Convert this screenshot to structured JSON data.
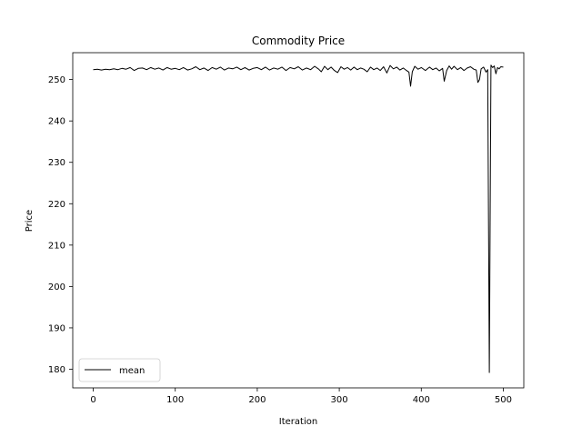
{
  "chart_data": {
    "type": "line",
    "title": "Commodity Price",
    "xlabel": "Iteration",
    "ylabel": "Price",
    "xlim": [
      -25,
      525
    ],
    "ylim": [
      175.5,
      256.5
    ],
    "xticks": [
      0,
      100,
      200,
      300,
      400,
      500
    ],
    "yticks": [
      180,
      190,
      200,
      210,
      220,
      230,
      240,
      250
    ],
    "grid": false,
    "legend": "lower-left",
    "series": [
      {
        "name": "mean",
        "color": "#000000",
        "points": [
          [
            0,
            252.4
          ],
          [
            5,
            252.5
          ],
          [
            10,
            252.3
          ],
          [
            15,
            252.5
          ],
          [
            20,
            252.4
          ],
          [
            25,
            252.6
          ],
          [
            30,
            252.4
          ],
          [
            35,
            252.7
          ],
          [
            40,
            252.5
          ],
          [
            45,
            252.9
          ],
          [
            50,
            252.2
          ],
          [
            55,
            252.7
          ],
          [
            60,
            252.8
          ],
          [
            65,
            252.4
          ],
          [
            70,
            252.9
          ],
          [
            75,
            252.5
          ],
          [
            80,
            252.8
          ],
          [
            85,
            252.3
          ],
          [
            90,
            252.9
          ],
          [
            95,
            252.5
          ],
          [
            100,
            252.7
          ],
          [
            105,
            252.4
          ],
          [
            110,
            252.9
          ],
          [
            115,
            252.3
          ],
          [
            120,
            252.6
          ],
          [
            125,
            253.1
          ],
          [
            130,
            252.4
          ],
          [
            135,
            252.8
          ],
          [
            140,
            252.2
          ],
          [
            145,
            252.9
          ],
          [
            150,
            252.5
          ],
          [
            155,
            253.0
          ],
          [
            160,
            252.3
          ],
          [
            165,
            252.8
          ],
          [
            170,
            252.6
          ],
          [
            175,
            253.0
          ],
          [
            180,
            252.4
          ],
          [
            185,
            252.9
          ],
          [
            190,
            252.3
          ],
          [
            195,
            252.7
          ],
          [
            200,
            252.9
          ],
          [
            205,
            252.4
          ],
          [
            210,
            253.0
          ],
          [
            215,
            252.3
          ],
          [
            220,
            252.8
          ],
          [
            225,
            252.5
          ],
          [
            230,
            253.0
          ],
          [
            235,
            252.2
          ],
          [
            240,
            252.9
          ],
          [
            245,
            252.6
          ],
          [
            250,
            253.1
          ],
          [
            255,
            252.3
          ],
          [
            260,
            252.8
          ],
          [
            265,
            252.4
          ],
          [
            270,
            253.2
          ],
          [
            275,
            252.5
          ],
          [
            278,
            251.9
          ],
          [
            282,
            253.2
          ],
          [
            286,
            252.4
          ],
          [
            290,
            253.0
          ],
          [
            294,
            252.2
          ],
          [
            298,
            251.7
          ],
          [
            302,
            253.1
          ],
          [
            306,
            252.5
          ],
          [
            310,
            252.9
          ],
          [
            314,
            252.3
          ],
          [
            318,
            253.0
          ],
          [
            322,
            252.4
          ],
          [
            326,
            252.8
          ],
          [
            330,
            252.5
          ],
          [
            334,
            251.9
          ],
          [
            338,
            253.0
          ],
          [
            342,
            252.4
          ],
          [
            346,
            252.8
          ],
          [
            350,
            252.2
          ],
          [
            354,
            253.1
          ],
          [
            358,
            251.6
          ],
          [
            362,
            253.4
          ],
          [
            366,
            252.6
          ],
          [
            370,
            253.0
          ],
          [
            374,
            252.3
          ],
          [
            378,
            252.8
          ],
          [
            382,
            252.2
          ],
          [
            385,
            251.8
          ],
          [
            387,
            248.4
          ],
          [
            389,
            251.9
          ],
          [
            392,
            253.2
          ],
          [
            396,
            252.5
          ],
          [
            400,
            252.9
          ],
          [
            405,
            252.2
          ],
          [
            410,
            253.0
          ],
          [
            414,
            252.4
          ],
          [
            418,
            252.8
          ],
          [
            422,
            252.1
          ],
          [
            426,
            252.7
          ],
          [
            428,
            249.6
          ],
          [
            431,
            252.2
          ],
          [
            434,
            253.3
          ],
          [
            437,
            252.5
          ],
          [
            440,
            253.2
          ],
          [
            444,
            252.4
          ],
          [
            448,
            252.9
          ],
          [
            452,
            252.2
          ],
          [
            456,
            252.8
          ],
          [
            460,
            253.1
          ],
          [
            464,
            252.5
          ],
          [
            467,
            252.3
          ],
          [
            469,
            249.3
          ],
          [
            471,
            250.0
          ],
          [
            473,
            252.6
          ],
          [
            476,
            253.0
          ],
          [
            479,
            251.8
          ],
          [
            481,
            252.4
          ],
          [
            483,
            179.2
          ],
          [
            485,
            253.5
          ],
          [
            487,
            252.9
          ],
          [
            489,
            253.3
          ],
          [
            491,
            251.4
          ],
          [
            493,
            252.9
          ],
          [
            495,
            252.6
          ],
          [
            497,
            253.1
          ],
          [
            500,
            253.0
          ]
        ]
      }
    ]
  }
}
